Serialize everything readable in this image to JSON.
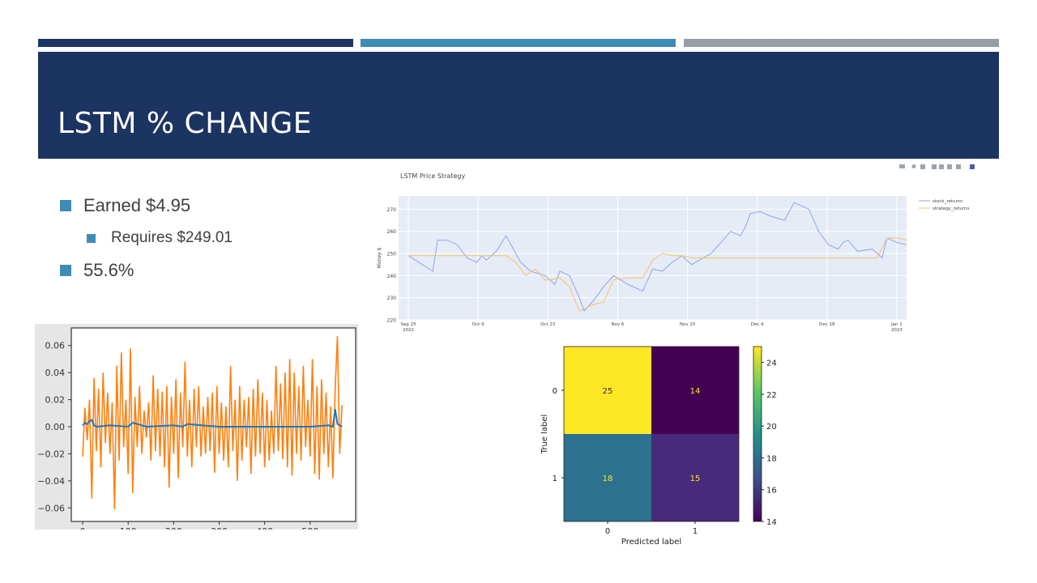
{
  "slide": {
    "title": "LSTM % CHANGE",
    "bullets": [
      "Earned $4.95",
      "Requires $249.01",
      "55.6%"
    ],
    "colors": {
      "navy": "#1c3461",
      "blue": "#3e8bb6",
      "gray": "#979ea5"
    }
  },
  "toolbar_icons": [
    "camera-icon",
    "zoom-icon",
    "pan-icon",
    "zoom-in-icon",
    "zoom-out-icon",
    "autoscale-icon",
    "reset-axes-icon",
    "plotly-logo-icon"
  ],
  "chart_data": [
    {
      "type": "line",
      "title": "",
      "x_ticks": [
        0,
        100,
        200,
        300,
        400,
        500
      ],
      "y_ticks": [
        -0.06,
        -0.04,
        -0.02,
        0.0,
        0.02,
        0.04,
        0.06
      ],
      "xlim": [
        -25,
        600
      ],
      "ylim": [
        -0.07,
        0.073
      ],
      "series": [
        {
          "color": "#ff7f0e",
          "x": [
            0,
            5,
            10,
            15,
            20,
            25,
            30,
            35,
            40,
            45,
            50,
            55,
            60,
            65,
            70,
            75,
            80,
            85,
            90,
            95,
            100,
            105,
            110,
            115,
            120,
            125,
            130,
            135,
            140,
            145,
            150,
            155,
            160,
            165,
            170,
            175,
            180,
            185,
            190,
            195,
            200,
            205,
            210,
            215,
            220,
            225,
            230,
            235,
            240,
            245,
            250,
            255,
            260,
            265,
            270,
            275,
            280,
            285,
            290,
            295,
            300,
            305,
            310,
            315,
            320,
            325,
            330,
            335,
            340,
            345,
            350,
            355,
            360,
            365,
            370,
            375,
            380,
            385,
            390,
            395,
            400,
            405,
            410,
            415,
            420,
            425,
            430,
            435,
            440,
            445,
            450,
            455,
            460,
            465,
            470,
            475,
            480,
            485,
            490,
            495,
            500,
            505,
            510,
            515,
            520,
            525,
            530,
            535,
            540,
            545,
            550,
            555,
            560,
            565,
            570
          ],
          "y": [
            -0.022,
            0.014,
            -0.01,
            0.02,
            -0.053,
            0.036,
            -0.018,
            0.028,
            -0.03,
            0.04,
            -0.012,
            0.025,
            -0.02,
            0.018,
            -0.061,
            0.045,
            -0.025,
            0.055,
            -0.015,
            0.02,
            -0.035,
            0.058,
            -0.049,
            0.022,
            -0.015,
            0.03,
            -0.02,
            0.012,
            -0.008,
            0.018,
            -0.025,
            0.038,
            -0.018,
            0.028,
            -0.022,
            0.026,
            -0.03,
            0.03,
            -0.045,
            0.022,
            -0.02,
            0.035,
            -0.038,
            0.025,
            -0.015,
            0.048,
            -0.022,
            0.02,
            -0.03,
            0.028,
            -0.015,
            0.03,
            -0.022,
            0.015,
            -0.02,
            0.022,
            -0.018,
            0.025,
            -0.034,
            0.03,
            -0.02,
            0.018,
            -0.025,
            0.015,
            -0.03,
            0.045,
            -0.018,
            0.02,
            -0.04,
            0.03,
            -0.025,
            0.02,
            -0.015,
            0.022,
            -0.035,
            0.028,
            -0.022,
            0.035,
            -0.02,
            0.025,
            -0.03,
            0.02,
            -0.025,
            0.012,
            -0.02,
            0.045,
            -0.018,
            0.032,
            -0.024,
            0.04,
            -0.03,
            0.05,
            -0.036,
            0.04,
            -0.02,
            0.03,
            -0.025,
            0.045,
            -0.015,
            0.02,
            -0.022,
            0.05,
            -0.035,
            0.03,
            -0.039,
            0.035,
            -0.02,
            0.025,
            -0.03,
            0.015,
            -0.038,
            0.028,
            0.067,
            -0.02,
            0.016
          ]
        },
        {
          "color": "#1f77b4",
          "x": [
            0,
            5,
            10,
            15,
            20,
            25,
            30,
            60,
            100,
            110,
            140,
            200,
            220,
            230,
            300,
            500,
            540,
            550,
            555,
            560,
            565,
            570
          ],
          "y": [
            0.001,
            0.003,
            0.002,
            0.004,
            0.005,
            0.001,
            0.0,
            0.001,
            0.0,
            0.003,
            0.0,
            0.001,
            0.0,
            0.002,
            0.0,
            0.0,
            0.001,
            0.0,
            0.013,
            0.002,
            0.001,
            0.0
          ]
        }
      ]
    },
    {
      "type": "line",
      "title": "LSTM Price Strategy",
      "ylabel": "Money $",
      "x_ticks": [
        [
          "Sep 25",
          "2022"
        ],
        [
          "Oct 9",
          ""
        ],
        [
          "Oct 23",
          ""
        ],
        [
          "Nov 6",
          ""
        ],
        [
          "Nov 20",
          ""
        ],
        [
          "Dec 4",
          ""
        ],
        [
          "Dec 18",
          ""
        ],
        [
          "Jan 1",
          "2023"
        ]
      ],
      "y_ticks": [
        220,
        230,
        240,
        250,
        260,
        270
      ],
      "xlim": [
        -2,
        102
      ],
      "ylim": [
        220,
        276
      ],
      "legend": "top-right",
      "series": [
        {
          "name": "stock_returns",
          "color": "#8fa4f0",
          "x": [
            0,
            5,
            6,
            8,
            10,
            12,
            14,
            15,
            16,
            18,
            20,
            22,
            23,
            25,
            28,
            30,
            31,
            33,
            35,
            36,
            38,
            40,
            42,
            45,
            48,
            50,
            52,
            54,
            56,
            58,
            62,
            64,
            66,
            68,
            69,
            70,
            72,
            74,
            77,
            79,
            80,
            82,
            84,
            86,
            88,
            89,
            90,
            92,
            95,
            97,
            98,
            100,
            102
          ],
          "y": [
            249,
            242,
            256,
            256,
            254,
            248,
            246,
            249,
            247,
            251,
            258,
            250,
            246,
            242,
            240,
            236,
            242,
            240,
            230,
            224,
            229,
            235,
            240,
            236,
            233,
            243,
            242,
            246,
            249,
            245,
            250,
            255,
            260,
            258,
            262,
            268,
            269,
            267,
            265,
            273,
            272,
            270,
            260,
            254,
            252,
            255,
            256,
            251,
            252,
            248,
            257,
            255,
            254
          ]
        },
        {
          "name": "strategy_returns",
          "color": "#f5c26b",
          "x": [
            0,
            20,
            22,
            24,
            26,
            28,
            29,
            31,
            33,
            35,
            36,
            38,
            40,
            42,
            45,
            48,
            50,
            52,
            54,
            56,
            58,
            62,
            66,
            70,
            74,
            78,
            82,
            86,
            90,
            94,
            96,
            98,
            100,
            102
          ],
          "y": [
            249,
            249,
            246,
            240,
            243,
            238,
            238,
            239,
            235,
            224,
            225,
            227,
            228,
            238,
            239,
            239,
            247,
            250,
            249,
            249,
            248,
            248,
            248,
            248,
            248,
            248,
            248,
            248,
            248,
            248,
            248,
            257,
            257,
            256
          ]
        }
      ]
    },
    {
      "type": "heatmap",
      "title": "",
      "xlabel": "Predicted label",
      "ylabel": "True label",
      "x_categories": [
        "0",
        "1"
      ],
      "y_categories": [
        "0",
        "1"
      ],
      "values": [
        [
          25,
          14
        ],
        [
          18,
          15
        ]
      ],
      "cell_colors": [
        [
          "#fde725",
          "#440154"
        ],
        [
          "#2c728e",
          "#472a7a"
        ]
      ],
      "text_colors": [
        [
          "#333333",
          "#fde725"
        ],
        [
          "#fde725",
          "#fde725"
        ]
      ],
      "colorbar_ticks": [
        14,
        16,
        18,
        20,
        22,
        24
      ],
      "colorbar_range": [
        14,
        25
      ]
    }
  ]
}
